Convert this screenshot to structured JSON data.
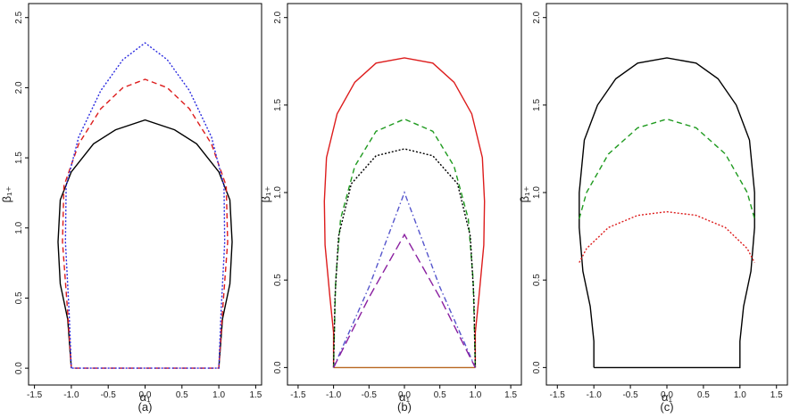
{
  "chart_data": [
    {
      "type": "line",
      "caption": "(a)",
      "xlabel": "α₁",
      "ylabel": "β₁₊",
      "xlim": [
        -1.58,
        1.58
      ],
      "ylim": [
        -0.12,
        2.6
      ],
      "xticks": [
        -1.5,
        {
          "value": -1,
          "label": "-1.0"
        },
        -0.5,
        {
          "value": 0,
          "label": "0.0"
        },
        0.5,
        {
          "value": 1,
          "label": "1.0"
        },
        1.5
      ],
      "yticks": [
        {
          "value": 0,
          "label": "0.0"
        },
        0.5,
        {
          "value": 1,
          "label": "1.0"
        },
        1.5,
        {
          "value": 2,
          "label": "2.0"
        },
        2.5
      ],
      "series": [
        {
          "color": "#000000",
          "dash": "solid",
          "x": [
            -1,
            -1.05,
            -1.15,
            -1.18,
            -1.15,
            -1.0,
            -0.7,
            -0.4,
            0,
            0.4,
            0.7,
            1.0,
            1.15,
            1.18,
            1.15,
            1.05,
            1
          ],
          "values": [
            0,
            0.35,
            0.6,
            0.9,
            1.2,
            1.4,
            1.6,
            1.7,
            1.77,
            1.7,
            1.6,
            1.4,
            1.2,
            0.9,
            0.6,
            0.35,
            0
          ]
        },
        {
          "color": "#dd1c1c",
          "dash": "dashed",
          "x": [
            -1,
            -1.05,
            -1.12,
            -1.1,
            -0.9,
            -0.6,
            -0.3,
            0,
            0.3,
            0.6,
            0.9,
            1.1,
            1.12,
            1.05,
            1,
            -1
          ],
          "values": [
            0,
            0.4,
            0.9,
            1.3,
            1.6,
            1.85,
            2.0,
            2.06,
            2.0,
            1.85,
            1.6,
            1.3,
            0.9,
            0.4,
            0,
            0
          ]
        },
        {
          "color": "#2a2adf",
          "dash": "dotted",
          "x": [
            -1,
            -1.03,
            -1.08,
            -1.07,
            -0.9,
            -0.6,
            -0.3,
            0,
            0.3,
            0.6,
            0.9,
            1.07,
            1.08,
            1.03,
            1,
            -1
          ],
          "values": [
            0,
            0.4,
            0.9,
            1.3,
            1.65,
            1.98,
            2.2,
            2.32,
            2.2,
            1.98,
            1.65,
            1.3,
            0.9,
            0.4,
            0,
            0
          ]
        }
      ]
    },
    {
      "type": "line",
      "caption": "(b)",
      "xlabel": "α₁",
      "ylabel": "β₁₊",
      "xlim": [
        -1.65,
        1.65
      ],
      "ylim": [
        -0.1,
        2.08
      ],
      "xticks": [
        -1.5,
        {
          "value": -1,
          "label": "-1.0"
        },
        -0.5,
        {
          "value": 0,
          "label": "0.0"
        },
        0.5,
        {
          "value": 1,
          "label": "1.0"
        },
        1.5
      ],
      "yticks": [
        {
          "value": 0,
          "label": "0.0"
        },
        0.5,
        {
          "value": 1,
          "label": "1.0"
        },
        1.5,
        {
          "value": 2,
          "label": "2.0"
        }
      ],
      "series": [
        {
          "color": "#dd1c1c",
          "dash": "solid",
          "x": [
            -1,
            -1,
            -1.05,
            -1.12,
            -1.13,
            -1.1,
            -0.95,
            -0.7,
            -0.4,
            0,
            0.4,
            0.7,
            0.95,
            1.1,
            1.13,
            1.12,
            1.05,
            1,
            1
          ],
          "values": [
            0,
            0.2,
            0.4,
            0.7,
            0.95,
            1.2,
            1.45,
            1.63,
            1.74,
            1.77,
            1.74,
            1.63,
            1.45,
            1.2,
            0.95,
            0.7,
            0.4,
            0.2,
            0
          ]
        },
        {
          "color": "#b8651e",
          "dash": "solid",
          "x": [
            -1,
            1
          ],
          "values": [
            0,
            0
          ]
        },
        {
          "color": "#1f9a1f",
          "dash": "dashed",
          "x": [
            -1,
            -0.97,
            -0.9,
            -0.7,
            -0.4,
            0,
            0.4,
            0.7,
            0.9,
            0.97,
            1
          ],
          "values": [
            0,
            0.5,
            0.85,
            1.15,
            1.35,
            1.42,
            1.35,
            1.15,
            0.85,
            0.5,
            0
          ]
        },
        {
          "color": "#000000",
          "dash": "dotted",
          "x": [
            -1,
            -0.98,
            -0.93,
            -0.75,
            -0.4,
            0,
            0.4,
            0.75,
            0.93,
            0.98,
            1
          ],
          "values": [
            0,
            0.4,
            0.75,
            1.05,
            1.21,
            1.25,
            1.21,
            1.05,
            0.75,
            0.4,
            0
          ]
        },
        {
          "color": "#5555cc",
          "dash": "dashdot",
          "x": [
            -1,
            -0.5,
            0,
            0.5,
            1
          ],
          "values": [
            0,
            0.46,
            1,
            0.46,
            0
          ]
        },
        {
          "color": "#8a1fa0",
          "dash": "longdash",
          "x": [
            -1,
            -0.5,
            0,
            0.5,
            1
          ],
          "values": [
            0,
            0.4,
            0.76,
            0.4,
            0
          ]
        }
      ]
    },
    {
      "type": "line",
      "caption": "(c)",
      "xlabel": "α₁",
      "ylabel": "β₁₊",
      "xlim": [
        -1.65,
        1.65
      ],
      "ylim": [
        -0.1,
        2.08
      ],
      "xticks": [
        -1.5,
        {
          "value": -1,
          "label": "-1.0"
        },
        -0.5,
        {
          "value": 0,
          "label": "0.0"
        },
        0.5,
        {
          "value": 1,
          "label": "1.0"
        },
        1.5
      ],
      "yticks": [
        {
          "value": 0,
          "label": "0.0"
        },
        0.5,
        {
          "value": 1,
          "label": "1.0"
        },
        1.5,
        {
          "value": 2,
          "label": "2.0"
        }
      ],
      "series": [
        {
          "color": "#000000",
          "dash": "solid",
          "x": [
            -1,
            -1,
            -1.05,
            -1.15,
            -1.2,
            -1.2,
            -1.13,
            -0.95,
            -0.7,
            -0.4,
            0,
            0.4,
            0.7,
            0.95,
            1.13,
            1.2,
            1.2,
            1.15,
            1.05,
            1,
            1,
            -1
          ],
          "values": [
            0,
            0.15,
            0.35,
            0.55,
            0.8,
            1.0,
            1.3,
            1.5,
            1.65,
            1.74,
            1.77,
            1.74,
            1.65,
            1.5,
            1.3,
            1.0,
            0.8,
            0.55,
            0.35,
            0.15,
            0,
            0
          ]
        },
        {
          "color": "#1f9a1f",
          "dash": "dashed",
          "x": [
            -1.2,
            -1.1,
            -0.8,
            -0.4,
            0,
            0.4,
            0.8,
            1.1,
            1.2
          ],
          "values": [
            0.85,
            1.0,
            1.22,
            1.37,
            1.42,
            1.37,
            1.22,
            1.0,
            0.85
          ]
        },
        {
          "color": "#dd1c1c",
          "dash": "dotted",
          "x": [
            -1.2,
            -1.1,
            -0.8,
            -0.4,
            0,
            0.4,
            0.8,
            1.1,
            1.2
          ],
          "values": [
            0.6,
            0.68,
            0.8,
            0.87,
            0.89,
            0.87,
            0.8,
            0.68,
            0.6
          ]
        }
      ]
    }
  ]
}
